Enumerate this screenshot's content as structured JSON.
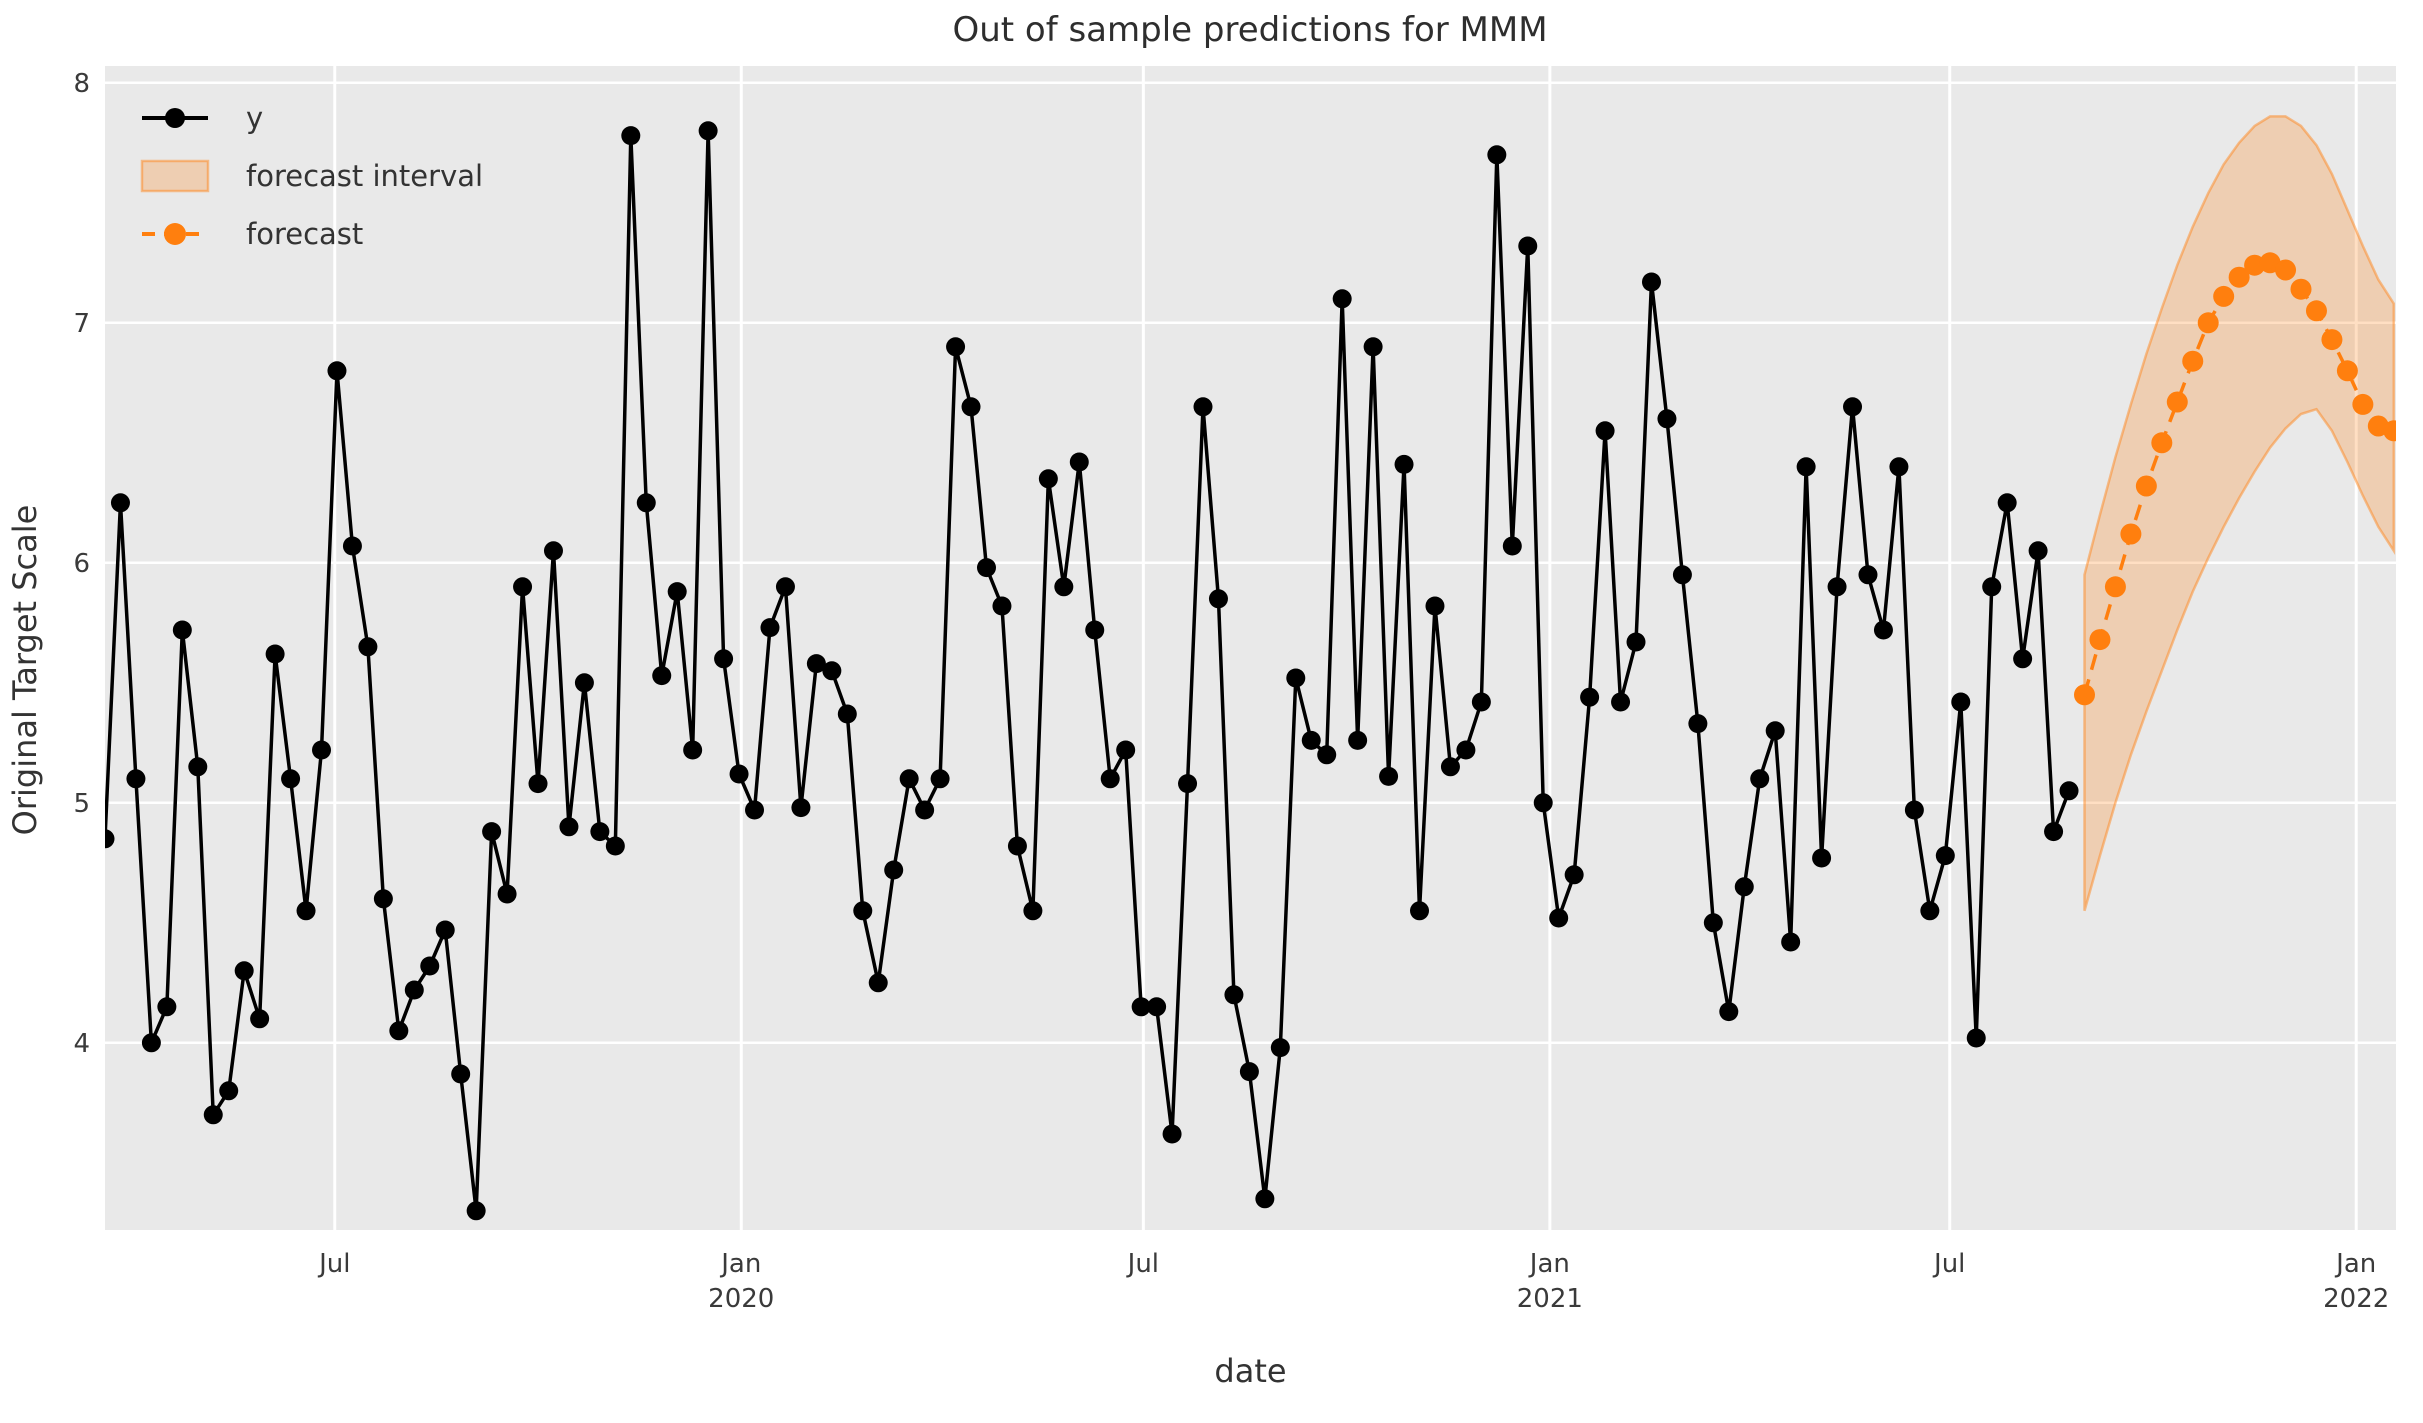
{
  "title": "Out of sample predictions for MMM",
  "legend": {
    "items": [
      {
        "label": "y",
        "marker": "black-line-dot"
      },
      {
        "label": "forecast interval",
        "marker": "orange-band-patch"
      },
      {
        "label": "forecast",
        "marker": "orange-dashed-line-dot"
      }
    ]
  },
  "colors": {
    "figure_background": "#ffffff",
    "plot_background": "#e9e9e9",
    "gridline": "#ffffff",
    "y_series": "#000000",
    "forecast_series": "#ff7f0e",
    "forecast_band_fill": "rgba(255,127,14,0.25)",
    "forecast_band_edge": "rgba(255,127,14,0.45)",
    "tick_text": "#3a3a3a",
    "label_text": "#333333",
    "title_text": "#2e2e2e"
  },
  "chart_data": {
    "type": "line",
    "title": "Out of sample predictions for MMM",
    "xlabel": "date",
    "ylabel": "Original Target Scale",
    "grid": true,
    "legend_position": "upper left",
    "ylim": [
      3.22,
      8.07
    ],
    "xlim": [
      "2019-03-19",
      "2022-01-19"
    ],
    "yticks": [
      4,
      5,
      6,
      7,
      8
    ],
    "xticks": [
      {
        "date": "2019-07-01",
        "line1": "Jul",
        "line2": ""
      },
      {
        "date": "2020-01-01",
        "line1": "Jan",
        "line2": "2020"
      },
      {
        "date": "2020-07-01",
        "line1": "Jul",
        "line2": ""
      },
      {
        "date": "2021-01-01",
        "line1": "Jan",
        "line2": "2021"
      },
      {
        "date": "2021-07-01",
        "line1": "Jul",
        "line2": ""
      },
      {
        "date": "2022-01-01",
        "line1": "Jan",
        "line2": "2022"
      }
    ],
    "series": [
      {
        "name": "y",
        "kind": "line",
        "style": "solid",
        "marker": "circle",
        "color": "#000000",
        "start_date": "2019-03-19",
        "freq_days": 7,
        "values": [
          4.85,
          6.25,
          5.1,
          4.0,
          4.15,
          5.72,
          5.15,
          3.7,
          3.8,
          4.3,
          4.1,
          5.62,
          5.1,
          4.55,
          5.22,
          6.8,
          6.07,
          5.65,
          4.6,
          4.05,
          4.22,
          4.32,
          4.47,
          3.87,
          3.3,
          4.88,
          4.62,
          5.9,
          5.08,
          6.05,
          4.9,
          5.5,
          4.88,
          4.82,
          7.78,
          6.25,
          5.53,
          5.88,
          5.22,
          7.8,
          5.6,
          5.12,
          4.97,
          5.73,
          5.9,
          4.98,
          5.58,
          5.55,
          5.37,
          4.55,
          4.25,
          4.72,
          5.1,
          4.97,
          5.1,
          6.9,
          6.65,
          5.98,
          5.82,
          4.82,
          4.55,
          6.35,
          5.9,
          6.42,
          5.72,
          5.1,
          5.22,
          4.15,
          4.15,
          3.62,
          5.08,
          6.65,
          5.85,
          4.2,
          3.88,
          3.35,
          3.98,
          5.52,
          5.26,
          5.2,
          7.1,
          5.26,
          6.9,
          5.11,
          6.41,
          4.55,
          5.82,
          5.15,
          5.22,
          5.42,
          7.7,
          6.07,
          7.32,
          5.0,
          4.52,
          4.7,
          5.44,
          6.55,
          5.42,
          5.67,
          7.17,
          6.6,
          5.95,
          5.33,
          4.5,
          4.13,
          4.65,
          5.1,
          5.3,
          4.42,
          6.4,
          4.77,
          5.9,
          6.65,
          5.95,
          5.72,
          6.4,
          4.97,
          4.55,
          4.78,
          5.42,
          4.02,
          5.9,
          6.25,
          5.6,
          6.05,
          4.88,
          5.05
        ]
      },
      {
        "name": "forecast",
        "kind": "line",
        "style": "dashed",
        "marker": "circle",
        "color": "#ff7f0e",
        "start_date": "2021-08-31",
        "freq_days": 7,
        "values": [
          5.45,
          5.68,
          5.9,
          6.12,
          6.32,
          6.5,
          6.67,
          6.84,
          7.0,
          7.11,
          7.19,
          7.24,
          7.25,
          7.22,
          7.14,
          7.05,
          6.93,
          6.8,
          6.66,
          6.57,
          6.55
        ]
      },
      {
        "name": "forecast interval",
        "kind": "band",
        "color": "#ff7f0e",
        "start_date": "2021-08-31",
        "freq_days": 7,
        "lower": [
          4.55,
          4.78,
          5.0,
          5.2,
          5.38,
          5.55,
          5.72,
          5.88,
          6.02,
          6.15,
          6.27,
          6.38,
          6.48,
          6.56,
          6.62,
          6.64,
          6.55,
          6.42,
          6.28,
          6.15,
          6.05
        ],
        "upper": [
          5.95,
          6.2,
          6.44,
          6.66,
          6.87,
          7.06,
          7.24,
          7.4,
          7.54,
          7.66,
          7.75,
          7.82,
          7.86,
          7.86,
          7.82,
          7.74,
          7.62,
          7.47,
          7.32,
          7.18,
          7.08
        ]
      }
    ]
  }
}
